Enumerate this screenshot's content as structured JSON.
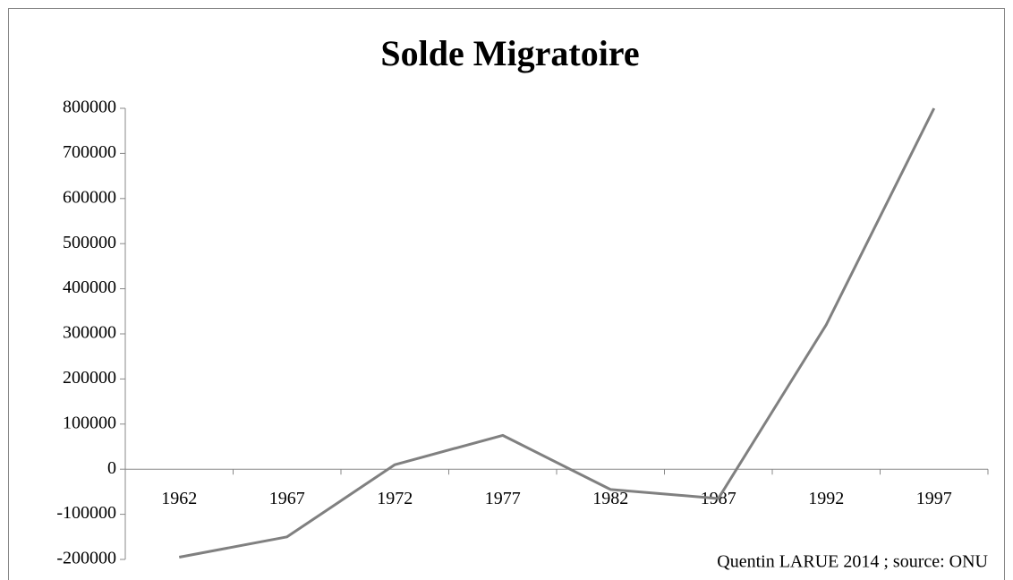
{
  "chart_data": {
    "type": "line",
    "title": "Solde Migratoire",
    "categories": [
      "1962",
      "1967",
      "1972",
      "1977",
      "1982",
      "1987",
      "1992",
      "1997"
    ],
    "series": [
      {
        "name": "Solde migratoire",
        "color": "#808080",
        "values": [
          -195000,
          -150000,
          10000,
          75000,
          -45000,
          -65000,
          320000,
          800000
        ]
      }
    ],
    "ylim": [
      -200000,
      800000
    ],
    "yticks": [
      -200000,
      -100000,
      0,
      100000,
      200000,
      300000,
      400000,
      500000,
      600000,
      700000,
      800000
    ],
    "annotation": "Quentin LARUE  2014 ; source: ONU"
  }
}
